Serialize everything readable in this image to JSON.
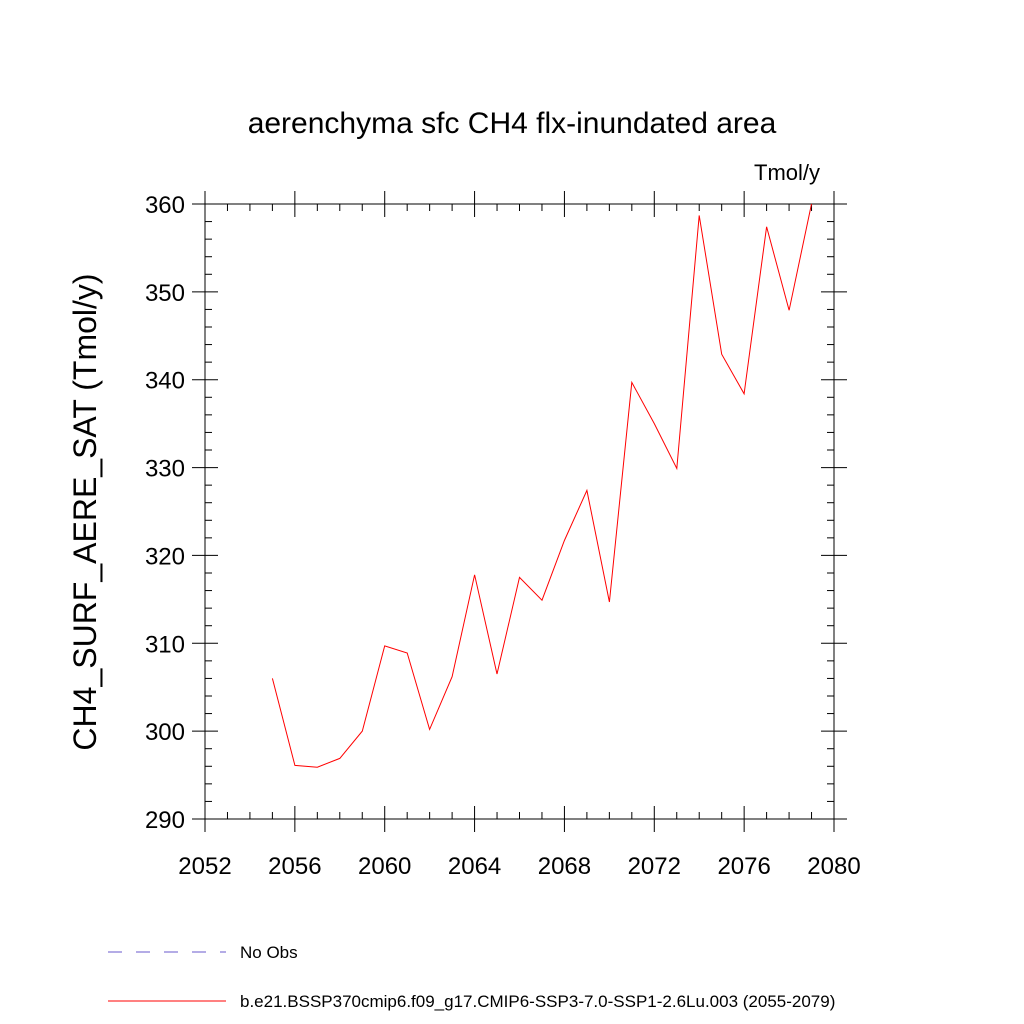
{
  "chart_data": {
    "type": "line",
    "title": "aerenchyma sfc CH4 flx-inundated area",
    "units": "Tmol/y",
    "ylabel": "CH4_SURF_AERE_SAT  (Tmol/y)",
    "xlabel": "",
    "xlim": [
      2052,
      2080
    ],
    "ylim": [
      290,
      360
    ],
    "x_ticks": [
      2052,
      2056,
      2060,
      2064,
      2068,
      2072,
      2076,
      2080
    ],
    "y_ticks": [
      290,
      300,
      310,
      320,
      330,
      340,
      350,
      360
    ],
    "grid": false,
    "legend_position": "bottom-left",
    "series": [
      {
        "name": "b.e21.BSSP370cmip6.f09_g17.CMIP6-SSP3-7.0-SSP1-2.6Lu.003 (2055-2079)",
        "color": "#ff0000",
        "style": "solid",
        "x": [
          2055,
          2056,
          2057,
          2058,
          2059,
          2060,
          2061,
          2062,
          2063,
          2064,
          2065,
          2066,
          2067,
          2068,
          2069,
          2070,
          2071,
          2072,
          2073,
          2074,
          2075,
          2076,
          2077,
          2078,
          2079
        ],
        "values": [
          306.0,
          296.1,
          295.9,
          296.9,
          300.0,
          309.7,
          308.9,
          300.2,
          306.2,
          317.8,
          306.5,
          317.5,
          314.9,
          321.7,
          327.4,
          314.7,
          339.7,
          335.0,
          329.9,
          358.7,
          342.9,
          338.4,
          357.4,
          347.9,
          360.0
        ]
      }
    ],
    "legend": [
      {
        "label": "No Obs",
        "color": "#6a5acd",
        "style": "dashed"
      },
      {
        "label": "b.e21.BSSP370cmip6.f09_g17.CMIP6-SSP3-7.0-SSP1-2.6Lu.003 (2055-2079)",
        "color": "#ff0000",
        "style": "solid"
      }
    ]
  }
}
